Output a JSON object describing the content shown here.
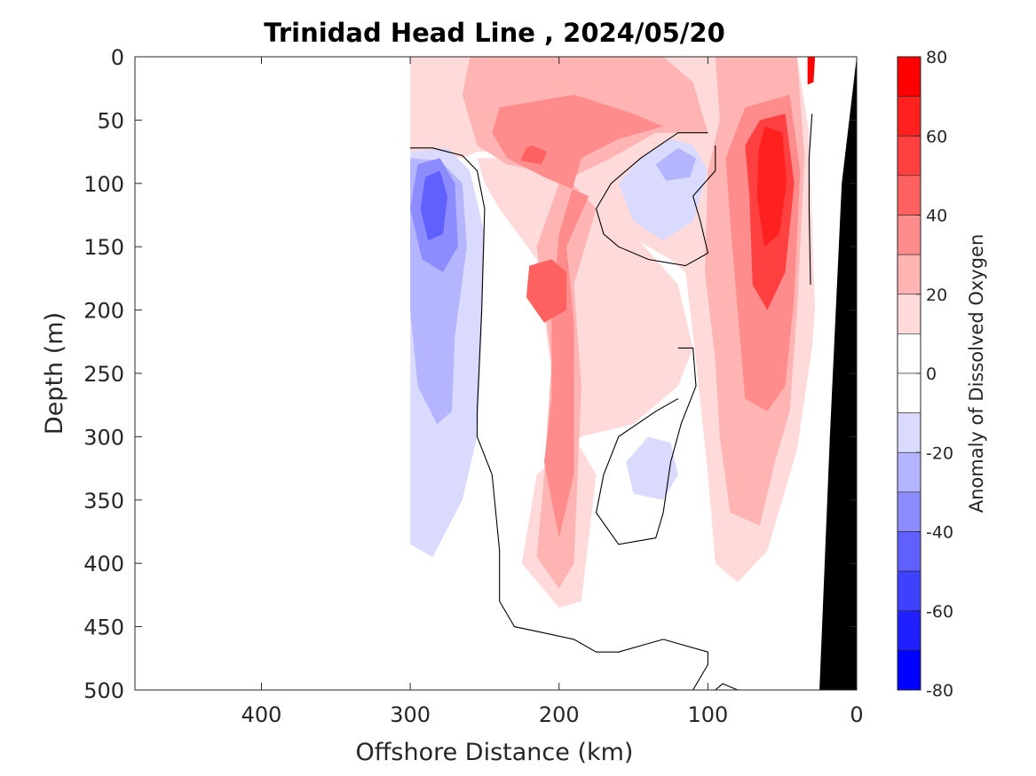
{
  "chart_data": {
    "type": "heatmap",
    "subtype": "filled-contour depth section",
    "title": "Trinidad Head Line , 2024/05/20",
    "xlabel": "Offshore Distance (km)",
    "ylabel": "Depth (m)",
    "colorbar_label": "Anomaly of Dissolved Oxygen",
    "x_axis": {
      "ticks": [
        400,
        300,
        200,
        100,
        0
      ],
      "range": [
        485,
        0
      ],
      "reversed": true
    },
    "y_axis": {
      "ticks": [
        0,
        50,
        100,
        150,
        200,
        250,
        300,
        350,
        400,
        450,
        500
      ],
      "range": [
        0,
        500
      ],
      "reversed": true
    },
    "colorbar": {
      "ticks": [
        80,
        60,
        40,
        20,
        0,
        -20,
        -40,
        -60,
        -80
      ],
      "range": [
        -80,
        80
      ],
      "levels": [
        {
          "min": 70,
          "max": 80,
          "color": "#ff0000"
        },
        {
          "min": 60,
          "max": 70,
          "color": "#ff2020"
        },
        {
          "min": 50,
          "max": 60,
          "color": "#ff4040"
        },
        {
          "min": 40,
          "max": 50,
          "color": "#ff6060"
        },
        {
          "min": 30,
          "max": 40,
          "color": "#ff8c8c"
        },
        {
          "min": 20,
          "max": 30,
          "color": "#ffb4b4"
        },
        {
          "min": 10,
          "max": 20,
          "color": "#ffdada"
        },
        {
          "min": 0,
          "max": 10,
          "color": "#ffffff"
        },
        {
          "min": -10,
          "max": 0,
          "color": "#ffffff"
        },
        {
          "min": -20,
          "max": -10,
          "color": "#dadaff"
        },
        {
          "min": -30,
          "max": -20,
          "color": "#b4b4ff"
        },
        {
          "min": -40,
          "max": -30,
          "color": "#8c8cff"
        },
        {
          "min": -50,
          "max": -40,
          "color": "#6060ff"
        },
        {
          "min": -60,
          "max": -50,
          "color": "#4040ff"
        },
        {
          "min": -70,
          "max": -60,
          "color": "#2020ff"
        },
        {
          "min": -80,
          "max": -70,
          "color": "#0000ff"
        }
      ]
    },
    "contour_level": 0,
    "regions": [
      {
        "name": "positive-anomaly-band",
        "level": 15,
        "points": [
          [
            300,
            0
          ],
          [
            40,
            0
          ],
          [
            32,
            60
          ],
          [
            28,
            200
          ],
          [
            30,
            230
          ],
          [
            40,
            310
          ],
          [
            60,
            390
          ],
          [
            80,
            415
          ],
          [
            95,
            400
          ],
          [
            100,
            330
          ],
          [
            108,
            240
          ],
          [
            115,
            170
          ],
          [
            125,
            160
          ],
          [
            140,
            150
          ],
          [
            165,
            130
          ],
          [
            180,
            100
          ],
          [
            200,
            80
          ],
          [
            230,
            75
          ],
          [
            255,
            75
          ],
          [
            265,
            80
          ],
          [
            300,
            75
          ]
        ]
      },
      {
        "name": "central-positive-tongue",
        "level": 15,
        "points": [
          [
            255,
            80
          ],
          [
            230,
            80
          ],
          [
            200,
            85
          ],
          [
            170,
            100
          ],
          [
            150,
            140
          ],
          [
            135,
            160
          ],
          [
            120,
            180
          ],
          [
            110,
            230
          ],
          [
            120,
            260
          ],
          [
            150,
            290
          ],
          [
            185,
            300
          ],
          [
            215,
            330
          ],
          [
            225,
            400
          ],
          [
            200,
            435
          ],
          [
            185,
            430
          ],
          [
            175,
            330
          ],
          [
            190,
            300
          ],
          [
            205,
            250
          ],
          [
            215,
            160
          ],
          [
            240,
            120
          ],
          [
            250,
            100
          ]
        ]
      },
      {
        "name": "positive-25",
        "level": 25,
        "points": [
          [
            260,
            0
          ],
          [
            130,
            0
          ],
          [
            110,
            20
          ],
          [
            100,
            60
          ],
          [
            135,
            60
          ],
          [
            165,
            80
          ],
          [
            200,
            100
          ],
          [
            215,
            150
          ],
          [
            205,
            240
          ],
          [
            210,
            330
          ],
          [
            215,
            395
          ],
          [
            200,
            420
          ],
          [
            190,
            400
          ],
          [
            185,
            260
          ],
          [
            190,
            180
          ],
          [
            175,
            120
          ],
          [
            195,
            95
          ],
          [
            235,
            85
          ],
          [
            255,
            70
          ],
          [
            265,
            30
          ]
        ]
      },
      {
        "name": "positive-35",
        "level": 35,
        "points": [
          [
            240,
            40
          ],
          [
            190,
            30
          ],
          [
            150,
            45
          ],
          [
            130,
            55
          ],
          [
            160,
            65
          ],
          [
            185,
            80
          ],
          [
            200,
            140
          ],
          [
            205,
            200
          ],
          [
            205,
            270
          ],
          [
            210,
            320
          ],
          [
            200,
            380
          ],
          [
            190,
            330
          ],
          [
            190,
            210
          ],
          [
            195,
            150
          ],
          [
            180,
            110
          ],
          [
            210,
            95
          ],
          [
            235,
            80
          ],
          [
            245,
            60
          ]
        ]
      },
      {
        "name": "positive-45-core",
        "level": 45,
        "points": [
          [
            205,
            160
          ],
          [
            195,
            170
          ],
          [
            195,
            200
          ],
          [
            210,
            210
          ],
          [
            222,
            190
          ],
          [
            220,
            165
          ]
        ]
      },
      {
        "name": "positive-45-patch",
        "level": 45,
        "points": [
          [
            218,
            70
          ],
          [
            208,
            75
          ],
          [
            212,
            85
          ],
          [
            226,
            82
          ],
          [
            222,
            72
          ]
        ]
      },
      {
        "name": "nearshore-positive-25",
        "level": 25,
        "points": [
          [
            95,
            0
          ],
          [
            40,
            0
          ],
          [
            35,
            80
          ],
          [
            40,
            200
          ],
          [
            45,
            280
          ],
          [
            55,
            320
          ],
          [
            65,
            370
          ],
          [
            85,
            360
          ],
          [
            92,
            300
          ],
          [
            95,
            240
          ],
          [
            102,
            170
          ],
          [
            100,
            90
          ],
          [
            92,
            50
          ]
        ]
      },
      {
        "name": "nearshore-positive-35",
        "level": 35,
        "points": [
          [
            75,
            40
          ],
          [
            45,
            30
          ],
          [
            38,
            90
          ],
          [
            42,
            190
          ],
          [
            48,
            260
          ],
          [
            60,
            280
          ],
          [
            75,
            270
          ],
          [
            80,
            200
          ],
          [
            85,
            130
          ],
          [
            88,
            80
          ]
        ]
      },
      {
        "name": "nearshore-positive-50",
        "level": 50,
        "points": [
          [
            65,
            50
          ],
          [
            48,
            45
          ],
          [
            42,
            100
          ],
          [
            48,
            170
          ],
          [
            60,
            200
          ],
          [
            70,
            180
          ],
          [
            72,
            110
          ],
          [
            75,
            70
          ]
        ]
      },
      {
        "name": "nearshore-positive-65",
        "level": 65,
        "points": [
          [
            62,
            55
          ],
          [
            50,
            60
          ],
          [
            47,
            100
          ],
          [
            52,
            140
          ],
          [
            62,
            150
          ],
          [
            67,
            110
          ],
          [
            66,
            75
          ]
        ]
      },
      {
        "name": "coastal-positive-75",
        "level": 75,
        "points": [
          [
            33,
            0
          ],
          [
            28,
            0
          ],
          [
            29,
            20
          ],
          [
            33,
            22
          ]
        ]
      },
      {
        "name": "offshore-negative-15",
        "level": -15,
        "points": [
          [
            300,
            75
          ],
          [
            275,
            72
          ],
          [
            260,
            90
          ],
          [
            250,
            140
          ],
          [
            252,
            220
          ],
          [
            255,
            300
          ],
          [
            265,
            350
          ],
          [
            285,
            395
          ],
          [
            300,
            385
          ]
        ]
      },
      {
        "name": "offshore-negative-25",
        "level": -25,
        "points": [
          [
            300,
            80
          ],
          [
            280,
            82
          ],
          [
            265,
            100
          ],
          [
            262,
            150
          ],
          [
            270,
            220
          ],
          [
            272,
            280
          ],
          [
            282,
            290
          ],
          [
            295,
            260
          ],
          [
            300,
            200
          ]
        ]
      },
      {
        "name": "offshore-negative-35",
        "level": -35,
        "points": [
          [
            295,
            85
          ],
          [
            280,
            80
          ],
          [
            270,
            100
          ],
          [
            268,
            150
          ],
          [
            278,
            170
          ],
          [
            292,
            160
          ],
          [
            300,
            120
          ]
        ]
      },
      {
        "name": "offshore-negative-45",
        "level": -45,
        "points": [
          [
            290,
            95
          ],
          [
            280,
            90
          ],
          [
            275,
            110
          ],
          [
            278,
            140
          ],
          [
            288,
            145
          ],
          [
            293,
            120
          ]
        ]
      },
      {
        "name": "mid-negative-15",
        "level": -15,
        "points": [
          [
            125,
            65
          ],
          [
            110,
            70
          ],
          [
            100,
            90
          ],
          [
            110,
            130
          ],
          [
            130,
            145
          ],
          [
            150,
            130
          ],
          [
            160,
            100
          ],
          [
            145,
            80
          ]
        ]
      },
      {
        "name": "mid-negative-25",
        "level": -25,
        "points": [
          [
            120,
            72
          ],
          [
            108,
            80
          ],
          [
            112,
            95
          ],
          [
            128,
            98
          ],
          [
            135,
            85
          ]
        ]
      },
      {
        "name": "deep-negative-15",
        "level": -15,
        "points": [
          [
            140,
            300
          ],
          [
            125,
            305
          ],
          [
            120,
            330
          ],
          [
            130,
            350
          ],
          [
            150,
            345
          ],
          [
            155,
            320
          ]
        ]
      }
    ],
    "zero_contours": [
      {
        "name": "zero-contour-west",
        "points": [
          [
            300,
            72
          ],
          [
            285,
            72
          ],
          [
            265,
            78
          ],
          [
            255,
            90
          ],
          [
            250,
            120
          ],
          [
            252,
            200
          ],
          [
            255,
            280
          ],
          [
            255,
            300
          ],
          [
            245,
            330
          ],
          [
            240,
            390
          ],
          [
            240,
            430
          ],
          [
            230,
            450
          ],
          [
            210,
            455
          ],
          [
            190,
            460
          ],
          [
            175,
            470
          ],
          [
            160,
            470
          ],
          [
            130,
            460
          ],
          [
            100,
            470
          ],
          [
            100,
            480
          ],
          [
            110,
            500
          ]
        ]
      },
      {
        "name": "zero-contour-loop",
        "points": [
          [
            100,
            60
          ],
          [
            120,
            60
          ],
          [
            145,
            80
          ],
          [
            165,
            100
          ],
          [
            175,
            120
          ],
          [
            170,
            140
          ],
          [
            160,
            150
          ],
          [
            140,
            160
          ],
          [
            115,
            165
          ],
          [
            100,
            155
          ],
          [
            105,
            130
          ],
          [
            110,
            110
          ],
          [
            95,
            90
          ],
          [
            95,
            70
          ]
        ]
      },
      {
        "name": "zero-contour-deep-loop",
        "points": [
          [
            120,
            230
          ],
          [
            110,
            230
          ],
          [
            108,
            260
          ],
          [
            118,
            290
          ],
          [
            125,
            320
          ],
          [
            130,
            360
          ],
          [
            135,
            380
          ],
          [
            160,
            385
          ],
          [
            175,
            360
          ],
          [
            170,
            330
          ],
          [
            160,
            300
          ],
          [
            135,
            280
          ],
          [
            120,
            270
          ]
        ]
      },
      {
        "name": "zero-contour-bottom",
        "points": [
          [
            95,
            500
          ],
          [
            90,
            495
          ],
          [
            80,
            500
          ]
        ]
      },
      {
        "name": "zero-contour-coastal",
        "points": [
          [
            30,
            45
          ],
          [
            32,
            80
          ],
          [
            32,
            120
          ],
          [
            31,
            180
          ]
        ]
      }
    ],
    "bathymetry": {
      "name": "seafloor",
      "points": [
        [
          0,
          0
        ],
        [
          10,
          100
        ],
        [
          18,
          300
        ],
        [
          25,
          500
        ],
        [
          0,
          500
        ]
      ],
      "color": "#000000"
    }
  }
}
